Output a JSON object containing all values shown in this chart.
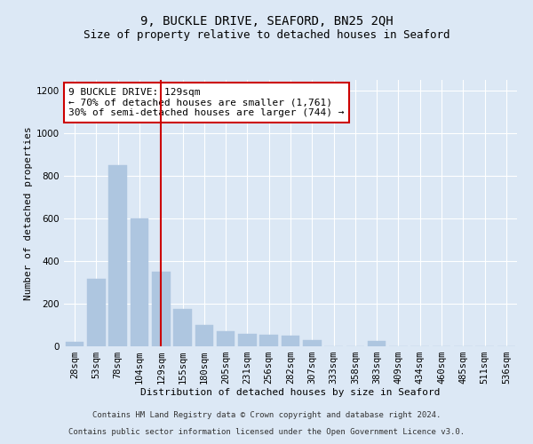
{
  "title": "9, BUCKLE DRIVE, SEAFORD, BN25 2QH",
  "subtitle": "Size of property relative to detached houses in Seaford",
  "xlabel": "Distribution of detached houses by size in Seaford",
  "ylabel": "Number of detached properties",
  "categories": [
    "28sqm",
    "53sqm",
    "78sqm",
    "104sqm",
    "129sqm",
    "155sqm",
    "180sqm",
    "205sqm",
    "231sqm",
    "256sqm",
    "282sqm",
    "307sqm",
    "333sqm",
    "358sqm",
    "383sqm",
    "409sqm",
    "434sqm",
    "460sqm",
    "485sqm",
    "511sqm",
    "536sqm"
  ],
  "values": [
    20,
    315,
    850,
    600,
    350,
    175,
    100,
    70,
    60,
    55,
    50,
    28,
    0,
    0,
    25,
    0,
    0,
    0,
    0,
    0,
    0
  ],
  "bar_color": "#aec6e0",
  "bar_edgecolor": "#aec6e0",
  "vline_index": 4,
  "vline_color": "#cc0000",
  "annotation_line1": "9 BUCKLE DRIVE: 129sqm",
  "annotation_line2": "← 70% of detached houses are smaller (1,761)",
  "annotation_line3": "30% of semi-detached houses are larger (744) →",
  "annotation_box_edgecolor": "#cc0000",
  "annotation_box_facecolor": "#ffffff",
  "ylim": [
    0,
    1250
  ],
  "yticks": [
    0,
    200,
    400,
    600,
    800,
    1000,
    1200
  ],
  "footer_line1": "Contains HM Land Registry data © Crown copyright and database right 2024.",
  "footer_line2": "Contains public sector information licensed under the Open Government Licence v3.0.",
  "background_color": "#dce8f5",
  "plot_background_color": "#dce8f5",
  "grid_color": "#ffffff",
  "title_fontsize": 10,
  "subtitle_fontsize": 9,
  "axis_label_fontsize": 8,
  "tick_fontsize": 7.5,
  "annotation_fontsize": 8,
  "footer_fontsize": 6.5
}
